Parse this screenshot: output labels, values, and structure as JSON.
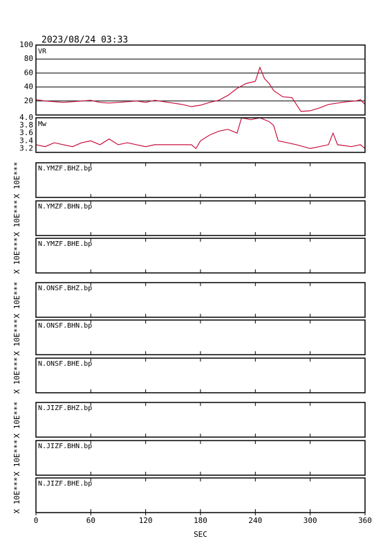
{
  "header": {
    "title": "2023/08/24 03:33"
  },
  "chart_data": [
    {
      "type": "line",
      "label": "VR",
      "color": "#c8103c",
      "grid": true,
      "xlim": [
        0,
        360
      ],
      "ylim": [
        0,
        100
      ],
      "yticks": [
        20,
        40,
        60,
        80,
        100
      ],
      "x": [
        0,
        10,
        20,
        30,
        40,
        50,
        60,
        70,
        80,
        90,
        100,
        110,
        120,
        130,
        140,
        150,
        160,
        170,
        180,
        190,
        200,
        210,
        220,
        230,
        240,
        245,
        250,
        255,
        260,
        270,
        280,
        290,
        300,
        310,
        320,
        330,
        340,
        350,
        355,
        360
      ],
      "values": [
        22,
        20,
        19,
        18,
        19,
        20,
        21,
        18,
        17,
        18,
        19,
        20,
        18,
        21,
        19,
        17,
        15,
        12,
        14,
        18,
        21,
        28,
        38,
        45,
        48,
        68,
        52,
        45,
        35,
        26,
        25,
        5,
        6,
        10,
        15,
        17,
        19,
        20,
        22,
        15
      ]
    },
    {
      "type": "line",
      "label": "Mw",
      "color": "#c8103c",
      "grid": false,
      "xlim": [
        0,
        360
      ],
      "ylim": [
        3.1,
        4.0
      ],
      "yticks": [
        3.2,
        3.4,
        3.6,
        3.8,
        {
          "value": 4,
          "label": "4.0"
        }
      ],
      "x": [
        0,
        10,
        20,
        30,
        40,
        50,
        60,
        70,
        80,
        90,
        100,
        110,
        120,
        130,
        140,
        150,
        160,
        170,
        175,
        180,
        190,
        200,
        210,
        220,
        225,
        235,
        245,
        255,
        260,
        265,
        275,
        285,
        300,
        310,
        320,
        325,
        330,
        345,
        355,
        360
      ],
      "values": [
        3.3,
        3.25,
        3.35,
        3.3,
        3.25,
        3.35,
        3.4,
        3.3,
        3.45,
        3.3,
        3.35,
        3.3,
        3.25,
        3.3,
        3.3,
        3.3,
        3.3,
        3.3,
        3.2,
        3.4,
        3.55,
        3.65,
        3.7,
        3.6,
        4.0,
        3.95,
        4.0,
        3.9,
        3.8,
        3.4,
        3.35,
        3.3,
        3.2,
        3.25,
        3.3,
        3.6,
        3.3,
        3.25,
        3.3,
        3.2
      ]
    }
  ],
  "waveforms": {
    "xlim": [
      0,
      360
    ],
    "xticks": [
      0,
      60,
      120,
      180,
      240,
      300,
      360
    ],
    "xlabel": "SEC",
    "panels": [
      {
        "label": "N.YMZF.BHZ.bp",
        "side_label": "X 10E***"
      },
      {
        "label": "N.YMZF.BHN.bp",
        "side_label": "X 10E***"
      },
      {
        "label": "N.YMZF.BHE.bp",
        "side_label": "X 10E***"
      },
      {
        "label": "N.ONSF.BHZ.bp",
        "side_label": "X 10E***"
      },
      {
        "label": "N.ONSF.BHN.bp",
        "side_label": "X 10E***"
      },
      {
        "label": "N.ONSF.BHE.bp",
        "side_label": "X 10E***"
      },
      {
        "label": "N.JIZF.BHZ.bp",
        "side_label": "X 10E***"
      },
      {
        "label": "N.JIZF.BHN.bp",
        "side_label": "X 10E***"
      },
      {
        "label": "N.JIZF.BHE.bp",
        "side_label": "X 10E***"
      }
    ]
  }
}
